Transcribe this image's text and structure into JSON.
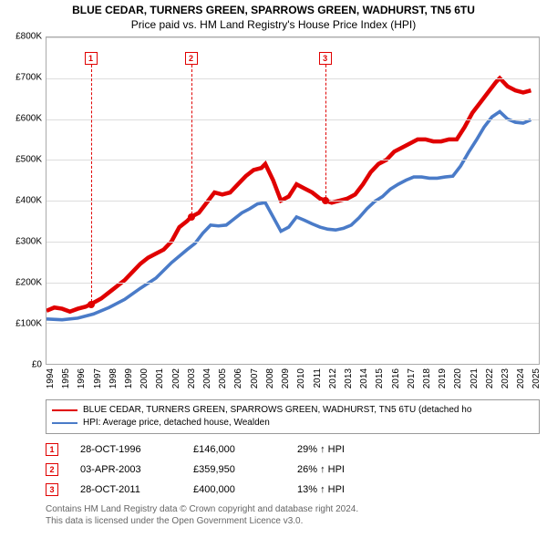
{
  "title_line1": "BLUE CEDAR, TURNERS GREEN, SPARROWS GREEN, WADHURST, TN5 6TU",
  "title_line2": "Price paid vs. HM Land Registry's House Price Index (HPI)",
  "chart": {
    "type": "line",
    "x_min": 1994,
    "x_max": 2025.5,
    "y_min": 0,
    "y_max": 800000,
    "y_ticks": [
      0,
      100000,
      200000,
      300000,
      400000,
      500000,
      600000,
      700000,
      800000
    ],
    "y_tick_labels": [
      "£0",
      "£100K",
      "£200K",
      "£300K",
      "£400K",
      "£500K",
      "£600K",
      "£700K",
      "£800K"
    ],
    "x_ticks": [
      1994,
      1995,
      1996,
      1997,
      1998,
      1999,
      2000,
      2001,
      2002,
      2003,
      2004,
      2005,
      2006,
      2007,
      2008,
      2009,
      2010,
      2011,
      2012,
      2013,
      2014,
      2015,
      2016,
      2017,
      2018,
      2019,
      2020,
      2021,
      2022,
      2023,
      2024,
      2025
    ],
    "grid_color": "#dddddd",
    "background_color": "#ffffff",
    "series": [
      {
        "name": "price_paid",
        "label": "BLUE CEDAR, TURNERS GREEN, SPARROWS GREEN, WADHURST, TN5 6TU (detached ho",
        "color": "#e00000",
        "line_width": 1.5,
        "data": [
          [
            1994.0,
            130000
          ],
          [
            1994.5,
            138000
          ],
          [
            1995.0,
            135000
          ],
          [
            1995.5,
            128000
          ],
          [
            1996.0,
            135000
          ],
          [
            1996.5,
            140000
          ],
          [
            1996.83,
            146000
          ],
          [
            1997.5,
            160000
          ],
          [
            1998.0,
            175000
          ],
          [
            1998.5,
            190000
          ],
          [
            1999.0,
            205000
          ],
          [
            1999.5,
            225000
          ],
          [
            2000.0,
            245000
          ],
          [
            2000.5,
            260000
          ],
          [
            2001.0,
            270000
          ],
          [
            2001.5,
            280000
          ],
          [
            2002.0,
            300000
          ],
          [
            2002.5,
            335000
          ],
          [
            2003.0,
            350000
          ],
          [
            2003.25,
            359950
          ],
          [
            2003.75,
            370000
          ],
          [
            2004.25,
            395000
          ],
          [
            2004.75,
            420000
          ],
          [
            2005.25,
            415000
          ],
          [
            2005.75,
            420000
          ],
          [
            2006.25,
            440000
          ],
          [
            2006.75,
            460000
          ],
          [
            2007.25,
            475000
          ],
          [
            2007.75,
            480000
          ],
          [
            2008.0,
            490000
          ],
          [
            2008.5,
            450000
          ],
          [
            2009.0,
            400000
          ],
          [
            2009.5,
            410000
          ],
          [
            2010.0,
            440000
          ],
          [
            2010.5,
            430000
          ],
          [
            2011.0,
            420000
          ],
          [
            2011.5,
            405000
          ],
          [
            2011.83,
            400000
          ],
          [
            2012.25,
            395000
          ],
          [
            2012.75,
            400000
          ],
          [
            2013.25,
            405000
          ],
          [
            2013.75,
            415000
          ],
          [
            2014.25,
            440000
          ],
          [
            2014.75,
            470000
          ],
          [
            2015.25,
            490000
          ],
          [
            2015.75,
            500000
          ],
          [
            2016.25,
            520000
          ],
          [
            2016.75,
            530000
          ],
          [
            2017.25,
            540000
          ],
          [
            2017.75,
            550000
          ],
          [
            2018.25,
            550000
          ],
          [
            2018.75,
            545000
          ],
          [
            2019.25,
            545000
          ],
          [
            2019.75,
            550000
          ],
          [
            2020.25,
            550000
          ],
          [
            2020.75,
            580000
          ],
          [
            2021.25,
            615000
          ],
          [
            2021.75,
            640000
          ],
          [
            2022.25,
            665000
          ],
          [
            2022.75,
            690000
          ],
          [
            2023.0,
            700000
          ],
          [
            2023.5,
            680000
          ],
          [
            2024.0,
            670000
          ],
          [
            2024.5,
            665000
          ],
          [
            2025.0,
            670000
          ]
        ]
      },
      {
        "name": "hpi",
        "label": "HPI: Average price, detached house, Wealden",
        "color": "#4a7bc8",
        "line_width": 1.2,
        "data": [
          [
            1994.0,
            110000
          ],
          [
            1995.0,
            108000
          ],
          [
            1996.0,
            112000
          ],
          [
            1997.0,
            122000
          ],
          [
            1998.0,
            138000
          ],
          [
            1999.0,
            158000
          ],
          [
            2000.0,
            185000
          ],
          [
            2001.0,
            210000
          ],
          [
            2002.0,
            248000
          ],
          [
            2003.0,
            280000
          ],
          [
            2003.5,
            295000
          ],
          [
            2004.0,
            320000
          ],
          [
            2004.5,
            340000
          ],
          [
            2005.0,
            338000
          ],
          [
            2005.5,
            340000
          ],
          [
            2006.0,
            355000
          ],
          [
            2006.5,
            370000
          ],
          [
            2007.0,
            380000
          ],
          [
            2007.5,
            392000
          ],
          [
            2008.0,
            395000
          ],
          [
            2008.5,
            360000
          ],
          [
            2009.0,
            325000
          ],
          [
            2009.5,
            335000
          ],
          [
            2010.0,
            360000
          ],
          [
            2010.5,
            352000
          ],
          [
            2011.0,
            343000
          ],
          [
            2011.5,
            335000
          ],
          [
            2012.0,
            330000
          ],
          [
            2012.5,
            328000
          ],
          [
            2013.0,
            332000
          ],
          [
            2013.5,
            340000
          ],
          [
            2014.0,
            358000
          ],
          [
            2014.5,
            380000
          ],
          [
            2015.0,
            398000
          ],
          [
            2015.5,
            410000
          ],
          [
            2016.0,
            428000
          ],
          [
            2016.5,
            440000
          ],
          [
            2017.0,
            450000
          ],
          [
            2017.5,
            458000
          ],
          [
            2018.0,
            458000
          ],
          [
            2018.5,
            455000
          ],
          [
            2019.0,
            455000
          ],
          [
            2019.5,
            458000
          ],
          [
            2020.0,
            460000
          ],
          [
            2020.5,
            485000
          ],
          [
            2021.0,
            518000
          ],
          [
            2021.5,
            548000
          ],
          [
            2022.0,
            580000
          ],
          [
            2022.5,
            605000
          ],
          [
            2023.0,
            618000
          ],
          [
            2023.5,
            600000
          ],
          [
            2024.0,
            592000
          ],
          [
            2024.5,
            590000
          ],
          [
            2025.0,
            598000
          ]
        ]
      }
    ],
    "markers": [
      {
        "num": "1",
        "x": 1996.83,
        "y": 146000,
        "label_y_top": 16
      },
      {
        "num": "2",
        "x": 2003.25,
        "y": 359950,
        "label_y_top": 16
      },
      {
        "num": "3",
        "x": 2011.83,
        "y": 400000,
        "label_y_top": 16
      }
    ]
  },
  "transactions": [
    {
      "num": "1",
      "date": "28-OCT-1996",
      "price": "£146,000",
      "delta": "29% ↑ HPI"
    },
    {
      "num": "2",
      "date": "03-APR-2003",
      "price": "£359,950",
      "delta": "26% ↑ HPI"
    },
    {
      "num": "3",
      "date": "28-OCT-2011",
      "price": "£400,000",
      "delta": "13% ↑ HPI"
    }
  ],
  "footer_line1": "Contains HM Land Registry data © Crown copyright and database right 2024.",
  "footer_line2": "This data is licensed under the Open Government Licence v3.0."
}
